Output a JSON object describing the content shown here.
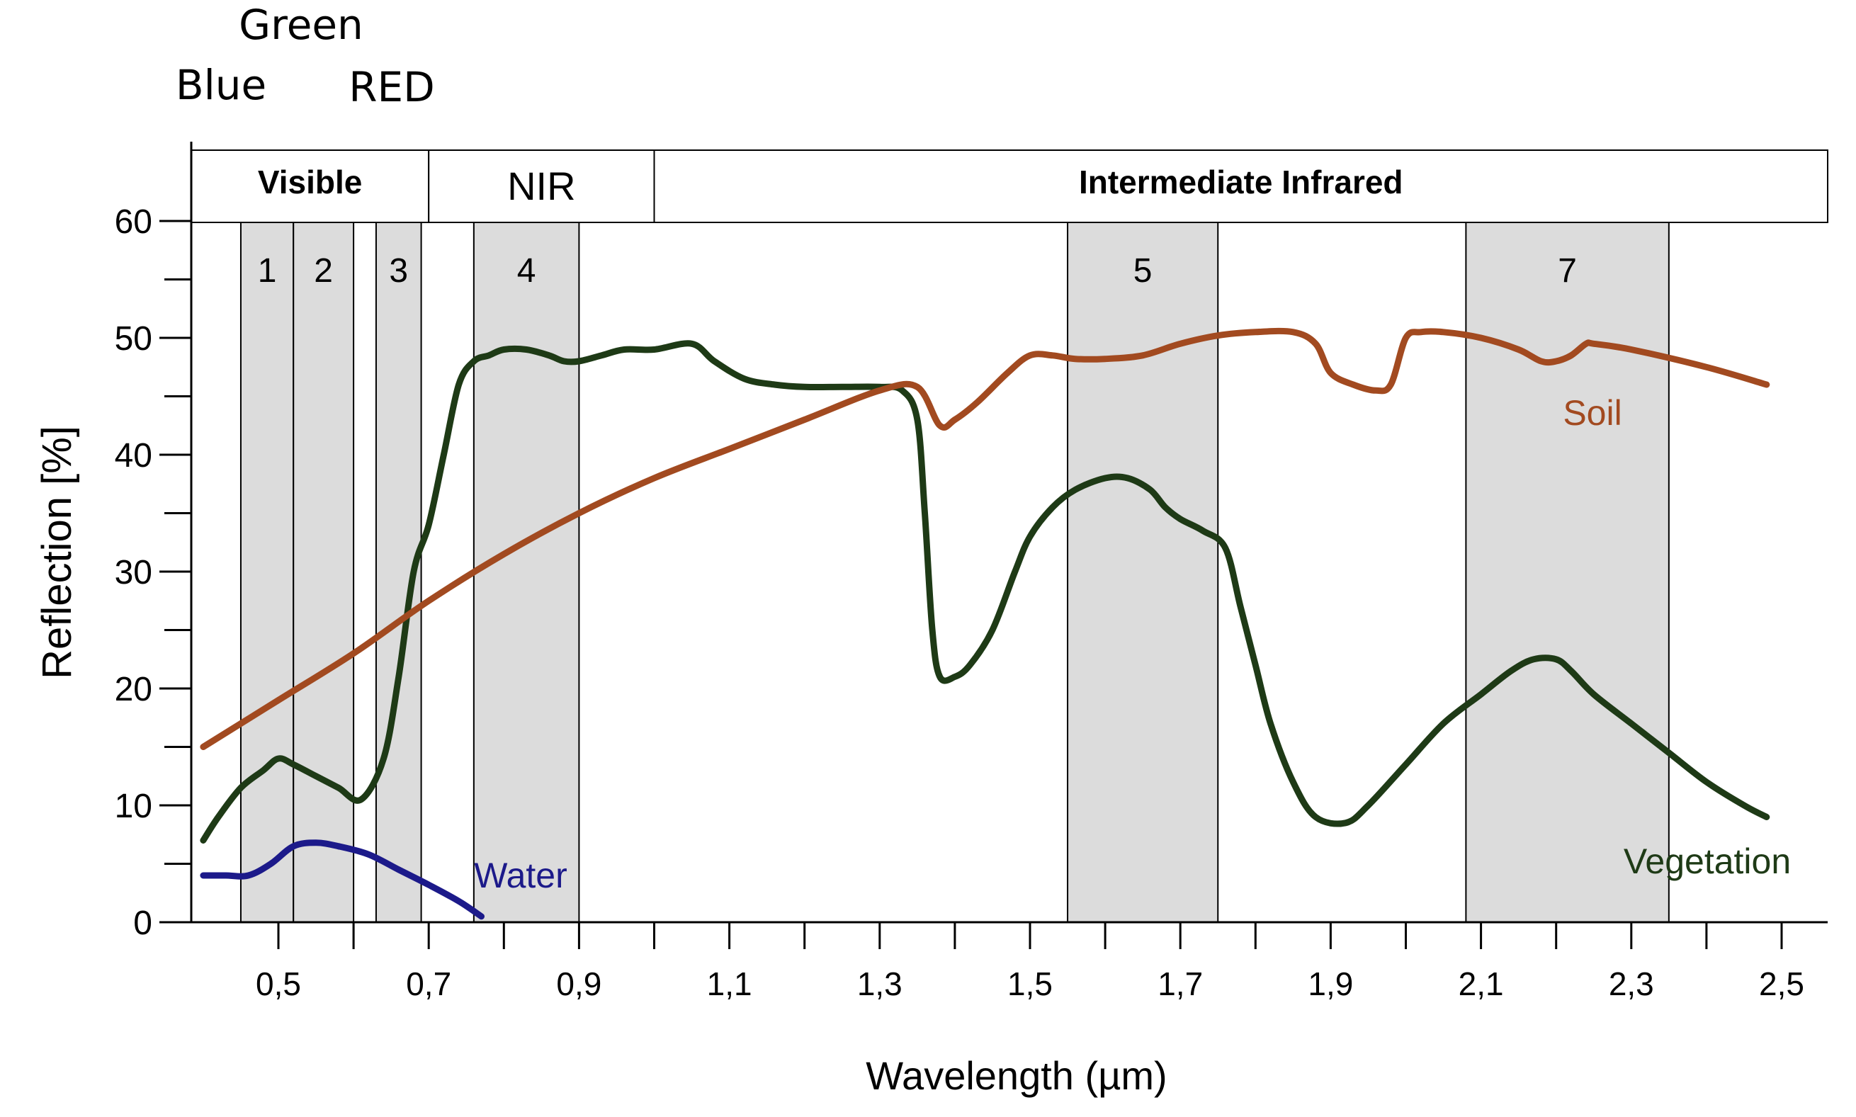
{
  "top_labels": {
    "blue": "Blue",
    "green": "Green",
    "red": "RED"
  },
  "chart_data": {
    "type": "line",
    "xlabel": "Wavelength (µm)",
    "ylabel": "Reflection [%]",
    "xlim": [
      0.4,
      2.5
    ],
    "ylim": [
      0,
      62
    ],
    "x_ticks": [
      "0,5",
      "0,7",
      "0,9",
      "1,1",
      "1,3",
      "1,5",
      "1,7",
      "1,9",
      "2,1",
      "2,3",
      "2,5"
    ],
    "y_ticks": [
      "0",
      "10",
      "20",
      "30",
      "40",
      "50",
      "60"
    ],
    "regions": [
      {
        "label": "Visible",
        "start": 0.4,
        "end": 0.7
      },
      {
        "label": "NIR",
        "start": 0.7,
        "end": 1.0
      },
      {
        "label": "Intermediate Infrared",
        "start": 1.0,
        "end": 2.5
      }
    ],
    "bands": [
      {
        "label": "1",
        "start": 0.45,
        "end": 0.52
      },
      {
        "label": "2",
        "start": 0.52,
        "end": 0.6
      },
      {
        "label": "3",
        "start": 0.63,
        "end": 0.69
      },
      {
        "label": "4",
        "start": 0.76,
        "end": 0.9
      },
      {
        "label": "5",
        "start": 1.55,
        "end": 1.75
      },
      {
        "label": "7",
        "start": 2.08,
        "end": 2.35
      }
    ],
    "series": [
      {
        "name": "Vegetation",
        "color": "#1e3a16",
        "x": [
          0.4,
          0.42,
          0.45,
          0.48,
          0.5,
          0.52,
          0.55,
          0.58,
          0.61,
          0.64,
          0.66,
          0.68,
          0.7,
          0.72,
          0.74,
          0.76,
          0.78,
          0.8,
          0.83,
          0.86,
          0.88,
          0.9,
          0.93,
          0.96,
          1.0,
          1.05,
          1.08,
          1.12,
          1.16,
          1.2,
          1.25,
          1.3,
          1.33,
          1.35,
          1.36,
          1.37,
          1.38,
          1.4,
          1.42,
          1.45,
          1.48,
          1.5,
          1.53,
          1.56,
          1.6,
          1.63,
          1.66,
          1.68,
          1.7,
          1.73,
          1.76,
          1.78,
          1.8,
          1.82,
          1.85,
          1.88,
          1.92,
          1.95,
          2.0,
          2.05,
          2.1,
          2.14,
          2.17,
          2.2,
          2.22,
          2.25,
          2.3,
          2.35,
          2.4,
          2.45,
          2.48
        ],
        "y": [
          7,
          9,
          11.5,
          13,
          14,
          13.5,
          12.5,
          11.5,
          10.5,
          14,
          21,
          30,
          34,
          40,
          46,
          48,
          48.5,
          49,
          49,
          48.5,
          48,
          48,
          48.5,
          49,
          49,
          49.5,
          48,
          46.5,
          46,
          45.8,
          45.8,
          45.8,
          45.5,
          43,
          35,
          25,
          21,
          21,
          22,
          25,
          30,
          33,
          35.5,
          37,
          38,
          38,
          37,
          35.5,
          34.5,
          33.5,
          32,
          27,
          22,
          17,
          12,
          9,
          8.5,
          10,
          13.5,
          17,
          19.5,
          21.5,
          22.5,
          22.5,
          21.5,
          19.5,
          17,
          14.5,
          12,
          10,
          9
        ]
      },
      {
        "name": "Soil",
        "color": "#a24a20",
        "x": [
          0.4,
          0.5,
          0.6,
          0.7,
          0.8,
          0.9,
          1.0,
          1.1,
          1.2,
          1.3,
          1.35,
          1.38,
          1.4,
          1.43,
          1.47,
          1.5,
          1.53,
          1.56,
          1.6,
          1.65,
          1.7,
          1.75,
          1.8,
          1.85,
          1.88,
          1.9,
          1.93,
          1.96,
          1.98,
          2.0,
          2.02,
          2.05,
          2.1,
          2.15,
          2.18,
          2.2,
          2.22,
          2.24,
          2.25,
          2.3,
          2.4,
          2.48
        ],
        "y": [
          15,
          19,
          23,
          27.5,
          31.5,
          35,
          38,
          40.5,
          43,
          45.5,
          45.8,
          42.5,
          43,
          44.5,
          47,
          48.5,
          48.5,
          48.2,
          48.2,
          48.5,
          49.5,
          50.2,
          50.5,
          50.5,
          49.5,
          47,
          46,
          45.5,
          46,
          50,
          50.5,
          50.5,
          50,
          49,
          48,
          48,
          48.5,
          49.5,
          49.5,
          49,
          47.5,
          46
        ]
      },
      {
        "name": "Water",
        "color": "#1c1a8a",
        "x": [
          0.4,
          0.43,
          0.46,
          0.49,
          0.52,
          0.55,
          0.58,
          0.62,
          0.66,
          0.7,
          0.74,
          0.77
        ],
        "y": [
          4,
          4,
          4,
          5,
          6.5,
          6.8,
          6.5,
          5.8,
          4.5,
          3.2,
          1.8,
          0.5
        ]
      }
    ]
  }
}
